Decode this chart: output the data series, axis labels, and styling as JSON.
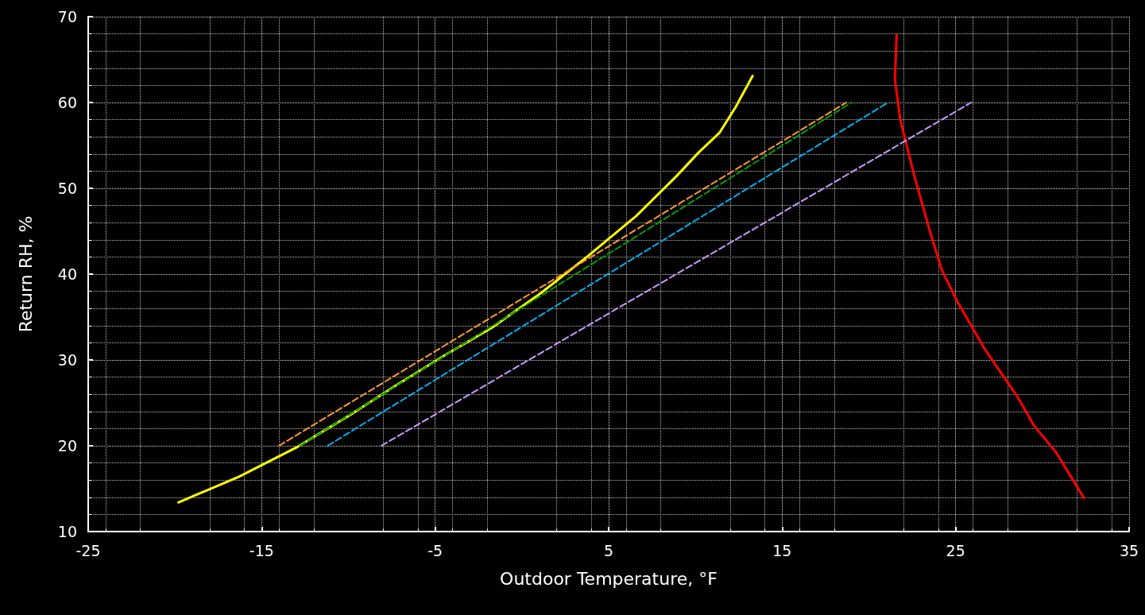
{
  "chart_data": {
    "type": "line",
    "xlabel": "Outdoor Temperature, °F",
    "ylabel": "Return RH, %",
    "xlim": [
      -25,
      35
    ],
    "xticks": [
      -25,
      -15,
      -5,
      5,
      15,
      25,
      35
    ],
    "ylim": [
      10,
      70
    ],
    "yticks": [
      10,
      20,
      30,
      40,
      50,
      60,
      70
    ],
    "grid": true,
    "marker": "none",
    "series": [
      {
        "color": "#ffff00",
        "line_style": "solid",
        "x": [
          -19.8,
          -16.3,
          -13.0,
          -9.9,
          -7.2,
          -4.4,
          -1.7,
          1.1,
          3.8,
          6.6,
          8.9,
          10.2,
          11.4,
          12.3,
          13.3
        ],
        "values": [
          13.4,
          16.4,
          19.8,
          23.6,
          27.1,
          30.6,
          33.8,
          37.8,
          42.1,
          46.8,
          51.4,
          54.2,
          56.5,
          59.4,
          63.1
        ]
      },
      {
        "color": "#ff0000",
        "line_style": "solid",
        "x": [
          21.6,
          21.5,
          21.8,
          22.6,
          23.5,
          24.2,
          25.1,
          26.7,
          28.6,
          29.5,
          30.8,
          32.4
        ],
        "values": [
          67.9,
          62.7,
          58.1,
          51.6,
          45.1,
          40.5,
          36.8,
          31.2,
          25.6,
          22.4,
          19.2,
          13.9
        ]
      },
      {
        "color": "#ff9933",
        "line_style": "dashed",
        "x": [
          -14.0,
          18.7
        ],
        "values": [
          20,
          60
        ]
      },
      {
        "color": "#00a000",
        "line_style": "dashed",
        "x": [
          -12.8,
          19.0
        ],
        "values": [
          20,
          60
        ]
      },
      {
        "color": "#00b0f0",
        "line_style": "dashed",
        "x": [
          -11.2,
          21.1
        ],
        "values": [
          20,
          60
        ]
      },
      {
        "color": "#cc99ff",
        "line_style": "dashed",
        "x": [
          -8.1,
          25.9
        ],
        "values": [
          20,
          60
        ]
      }
    ]
  }
}
